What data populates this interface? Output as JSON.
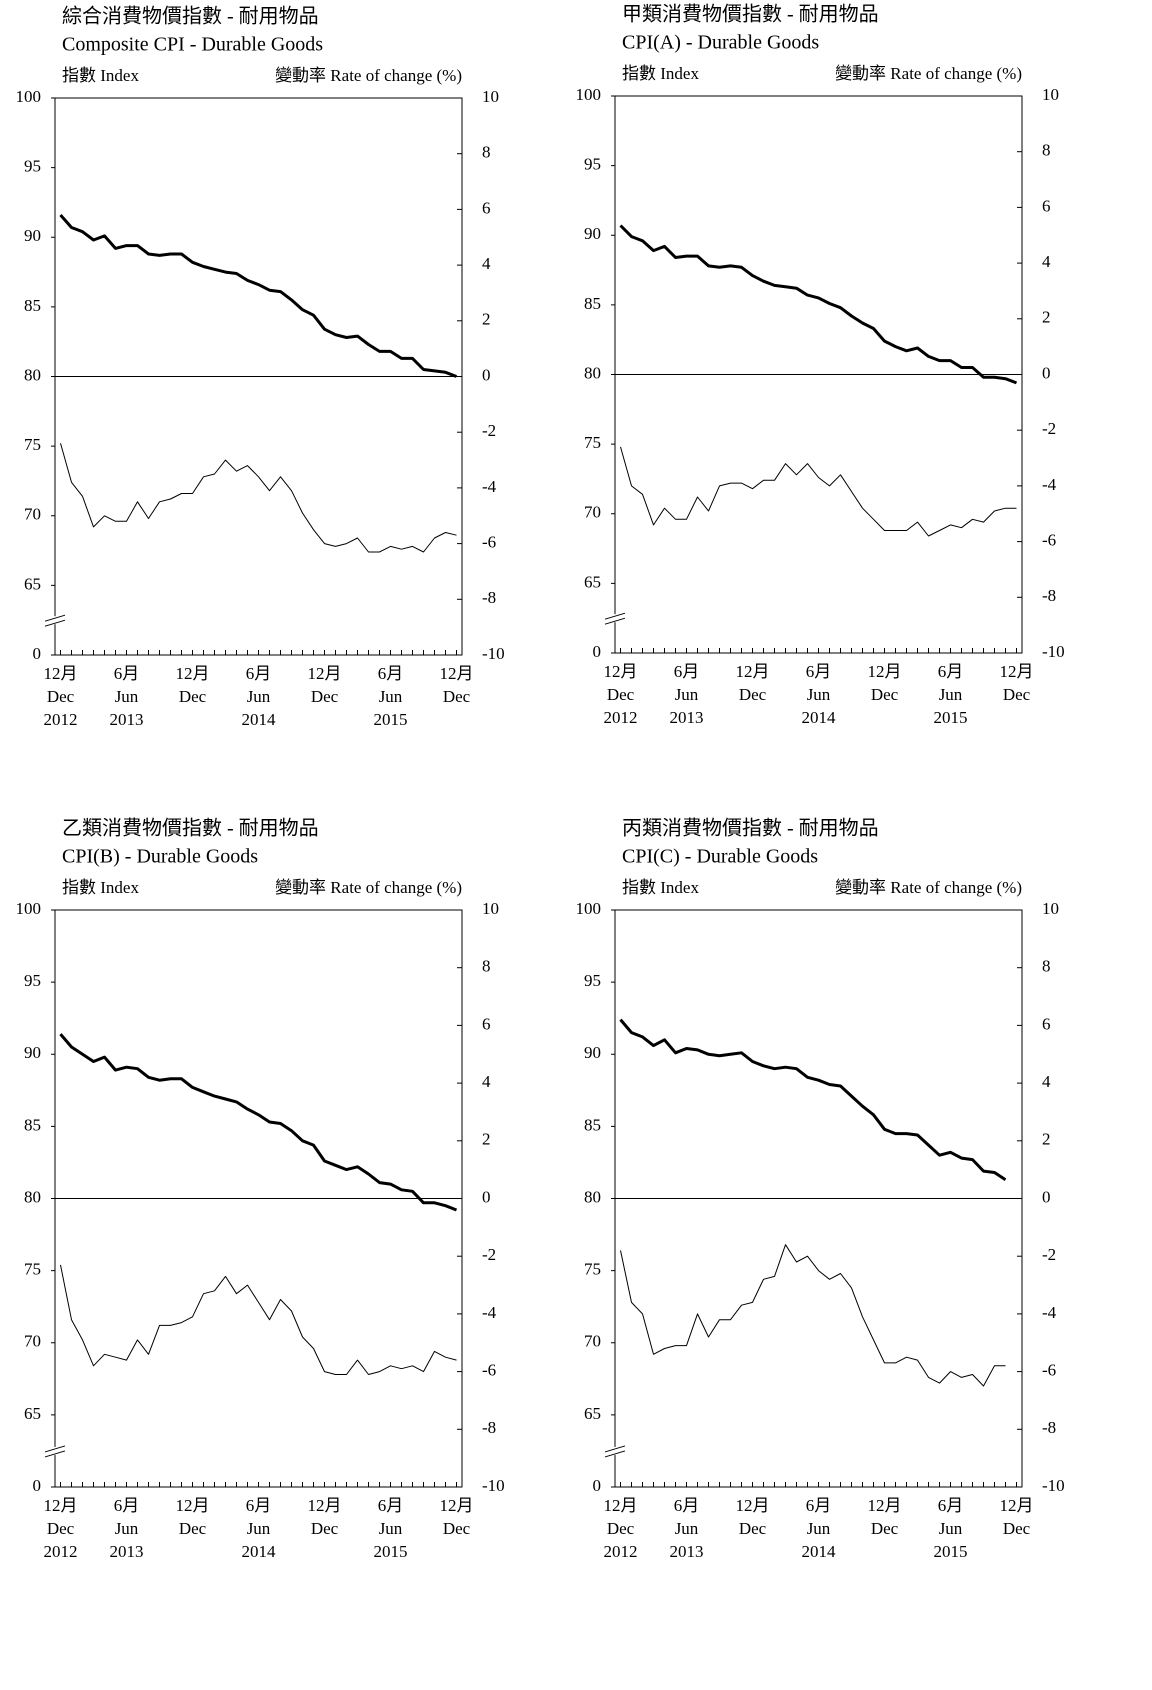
{
  "chart_data": [
    {
      "type": "line",
      "title": "綜合消費物價指數 - 耐用物品",
      "subtitle": "Composite CPI - Durable Goods",
      "ylabel": "指數 Index",
      "y2label": "變動率 Rate of change (%)",
      "categories": [
        [
          "12月",
          "Dec",
          "2012"
        ],
        null,
        null,
        null,
        null,
        null,
        [
          "6月",
          "Jun",
          "2013"
        ],
        null,
        null,
        null,
        null,
        null,
        [
          "12月",
          "Dec"
        ],
        null,
        null,
        null,
        null,
        null,
        [
          "6月",
          "Jun",
          "2014"
        ],
        null,
        null,
        null,
        null,
        null,
        [
          "12月",
          "Dec"
        ],
        null,
        null,
        null,
        null,
        null,
        [
          "6月",
          "Jun",
          "2015"
        ],
        null,
        null,
        null,
        null,
        null,
        [
          "12月",
          "Dec"
        ]
      ],
      "series": [
        {
          "color": "#000000",
          "line_width": 3,
          "values": [
            91.6,
            90.7,
            90.4,
            89.8,
            90.1,
            89.2,
            89.4,
            89.4,
            88.8,
            88.7,
            88.8,
            88.8,
            88.2,
            87.9,
            87.7,
            87.5,
            87.4,
            86.9,
            86.6,
            86.2,
            86.1,
            85.5,
            84.8,
            84.4,
            83.4,
            83.0,
            82.8,
            82.9,
            82.3,
            81.8,
            81.8,
            81.3,
            81.3,
            80.5,
            80.4,
            80.3,
            80.0
          ]
        },
        {
          "color": "#000000",
          "line_width": 1,
          "axis": "y2",
          "values": [
            -2.4,
            -3.8,
            -4.3,
            -5.4,
            -5.0,
            -5.2,
            -5.2,
            -4.5,
            -5.1,
            -4.5,
            -4.4,
            -4.2,
            -4.2,
            -3.6,
            -3.5,
            -3.0,
            -3.4,
            -3.2,
            -3.6,
            -4.1,
            -3.6,
            -4.1,
            -4.9,
            -5.5,
            -6.0,
            -6.1,
            -6.0,
            -5.8,
            -6.3,
            -6.3,
            -6.1,
            -6.2,
            -6.1,
            -6.3,
            -5.8,
            -5.6,
            -5.7
          ]
        }
      ],
      "ylim": [
        60,
        100
      ],
      "yticks": [
        {
          "value": 60,
          "label": "0"
        },
        65,
        70,
        75,
        80,
        85,
        90,
        95,
        100
      ],
      "y2lim": [
        -10,
        10
      ],
      "y2ticks": [
        -10,
        -8,
        -6,
        -4,
        -2,
        0,
        2,
        4,
        6,
        8,
        10
      ],
      "hline": 80,
      "axis_break": true
    },
    {
      "type": "line",
      "title": "甲類消費物價指數 - 耐用物品",
      "subtitle": "CPI(A) - Durable Goods",
      "ylabel": "指數 Index",
      "y2label": "變動率 Rate of change (%)",
      "categories": [
        [
          "12月",
          "Dec",
          "2012"
        ],
        null,
        null,
        null,
        null,
        null,
        [
          "6月",
          "Jun",
          "2013"
        ],
        null,
        null,
        null,
        null,
        null,
        [
          "12月",
          "Dec"
        ],
        null,
        null,
        null,
        null,
        null,
        [
          "6月",
          "Jun",
          "2014"
        ],
        null,
        null,
        null,
        null,
        null,
        [
          "12月",
          "Dec"
        ],
        null,
        null,
        null,
        null,
        null,
        [
          "6月",
          "Jun",
          "2015"
        ],
        null,
        null,
        null,
        null,
        null,
        [
          "12月",
          "Dec"
        ]
      ],
      "series": [
        {
          "color": "#000000",
          "line_width": 3,
          "values": [
            90.7,
            89.9,
            89.6,
            88.9,
            89.2,
            88.4,
            88.5,
            88.5,
            87.8,
            87.7,
            87.8,
            87.7,
            87.1,
            86.7,
            86.4,
            86.3,
            86.2,
            85.7,
            85.5,
            85.1,
            84.8,
            84.2,
            83.7,
            83.3,
            82.4,
            82.0,
            81.7,
            81.9,
            81.3,
            81.0,
            81.0,
            80.5,
            80.5,
            79.8,
            79.8,
            79.7,
            79.4
          ]
        },
        {
          "color": "#000000",
          "line_width": 1,
          "axis": "y2",
          "values": [
            -2.6,
            -4.0,
            -4.3,
            -5.4,
            -4.8,
            -5.2,
            -5.2,
            -4.4,
            -4.9,
            -4.0,
            -3.9,
            -3.9,
            -4.1,
            -3.8,
            -3.8,
            -3.2,
            -3.6,
            -3.2,
            -3.7,
            -4.0,
            -3.6,
            -4.2,
            -4.8,
            -5.2,
            -5.6,
            -5.6,
            -5.6,
            -5.3,
            -5.8,
            -5.6,
            -5.4,
            -5.5,
            -5.2,
            -5.3,
            -4.9,
            -4.8,
            -4.8
          ]
        }
      ],
      "ylim": [
        60,
        100
      ],
      "yticks": [
        {
          "value": 60,
          "label": "0"
        },
        65,
        70,
        75,
        80,
        85,
        90,
        95,
        100
      ],
      "y2lim": [
        -10,
        10
      ],
      "y2ticks": [
        -10,
        -8,
        -6,
        -4,
        -2,
        0,
        2,
        4,
        6,
        8,
        10
      ],
      "hline": 80,
      "axis_break": true
    },
    {
      "type": "line",
      "title": "乙類消費物價指數 - 耐用物品",
      "subtitle": "CPI(B) - Durable Goods",
      "ylabel": "指數 Index",
      "y2label": "變動率 Rate of change (%)",
      "categories": [
        [
          "12月",
          "Dec",
          "2012"
        ],
        null,
        null,
        null,
        null,
        null,
        [
          "6月",
          "Jun",
          "2013"
        ],
        null,
        null,
        null,
        null,
        null,
        [
          "12月",
          "Dec"
        ],
        null,
        null,
        null,
        null,
        null,
        [
          "6月",
          "Jun",
          "2014"
        ],
        null,
        null,
        null,
        null,
        null,
        [
          "12月",
          "Dec"
        ],
        null,
        null,
        null,
        null,
        null,
        [
          "6月",
          "Jun",
          "2015"
        ],
        null,
        null,
        null,
        null,
        null,
        [
          "12月",
          "Dec"
        ]
      ],
      "series": [
        {
          "color": "#000000",
          "line_width": 3,
          "values": [
            91.4,
            90.5,
            90.0,
            89.5,
            89.8,
            88.9,
            89.1,
            89.0,
            88.4,
            88.2,
            88.3,
            88.3,
            87.7,
            87.4,
            87.1,
            86.9,
            86.7,
            86.2,
            85.8,
            85.3,
            85.2,
            84.7,
            84.0,
            83.7,
            82.6,
            82.3,
            82.0,
            82.2,
            81.7,
            81.1,
            81.0,
            80.6,
            80.5,
            79.7,
            79.7,
            79.5,
            79.2
          ]
        },
        {
          "color": "#000000",
          "line_width": 1,
          "axis": "y2",
          "values": [
            -2.3,
            -4.2,
            -4.9,
            -5.8,
            -5.4,
            -5.5,
            -5.6,
            -4.9,
            -5.4,
            -4.4,
            -4.4,
            -4.3,
            -4.1,
            -3.3,
            -3.2,
            -2.7,
            -3.3,
            -3.0,
            -3.6,
            -4.2,
            -3.5,
            -3.9,
            -4.8,
            -5.2,
            -6.0,
            -6.1,
            -6.1,
            -5.6,
            -6.1,
            -6.0,
            -5.8,
            -5.9,
            -5.8,
            -6.0,
            -5.3,
            -5.5,
            -5.6
          ]
        }
      ],
      "ylim": [
        60,
        100
      ],
      "yticks": [
        {
          "value": 60,
          "label": "0"
        },
        65,
        70,
        75,
        80,
        85,
        90,
        95,
        100
      ],
      "y2lim": [
        -10,
        10
      ],
      "y2ticks": [
        -10,
        -8,
        -6,
        -4,
        -2,
        0,
        2,
        4,
        6,
        8,
        10
      ],
      "hline": 80,
      "axis_break": true
    },
    {
      "type": "line",
      "title": "丙類消費物價指數 - 耐用物品",
      "subtitle": "CPI(C) - Durable Goods",
      "ylabel": "指數 Index",
      "y2label": "變動率 Rate of change (%)",
      "categories": [
        [
          "12月",
          "Dec",
          "2012"
        ],
        null,
        null,
        null,
        null,
        null,
        [
          "6月",
          "Jun",
          "2013"
        ],
        null,
        null,
        null,
        null,
        null,
        [
          "12月",
          "Dec"
        ],
        null,
        null,
        null,
        null,
        null,
        [
          "6月",
          "Jun",
          "2014"
        ],
        null,
        null,
        null,
        null,
        null,
        [
          "12月",
          "Dec"
        ],
        null,
        null,
        null,
        null,
        null,
        [
          "6月",
          "Jun",
          "2015"
        ],
        null,
        null,
        null,
        null,
        null,
        [
          "12月",
          "Dec"
        ]
      ],
      "series": [
        {
          "color": "#000000",
          "line_width": 3,
          "values": [
            92.4,
            91.5,
            91.2,
            90.6,
            91.0,
            90.1,
            90.4,
            90.3,
            90.0,
            89.9,
            90.0,
            90.1,
            89.5,
            89.2,
            89.0,
            89.1,
            89.0,
            88.4,
            88.2,
            87.9,
            87.8,
            87.1,
            86.4,
            85.8,
            84.8,
            84.5,
            84.5,
            84.4,
            83.7,
            83.0,
            83.2,
            82.8,
            82.7,
            81.9,
            81.8,
            81.3,
            null
          ]
        },
        {
          "color": "#000000",
          "line_width": 1,
          "axis": "y2",
          "values": [
            -1.8,
            -3.6,
            -4.0,
            -5.4,
            -5.2,
            -5.1,
            -5.1,
            -4.0,
            -4.8,
            -4.2,
            -4.2,
            -3.7,
            -3.6,
            -2.8,
            -2.7,
            -1.6,
            -2.2,
            -2.0,
            -2.5,
            -2.8,
            -2.6,
            -3.1,
            -4.1,
            -4.9,
            -5.7,
            -5.7,
            -5.5,
            -5.6,
            -6.2,
            -6.4,
            -6.0,
            -6.2,
            -6.1,
            -6.5,
            -5.8,
            -5.8,
            null
          ]
        }
      ],
      "ylim": [
        60,
        100
      ],
      "yticks": [
        {
          "value": 60,
          "label": "0"
        },
        65,
        70,
        75,
        80,
        85,
        90,
        95,
        100
      ],
      "y2lim": [
        -10,
        10
      ],
      "y2ticks": [
        -10,
        -8,
        -6,
        -4,
        -2,
        0,
        2,
        4,
        6,
        8,
        10
      ],
      "hline": 80,
      "axis_break": true
    }
  ]
}
